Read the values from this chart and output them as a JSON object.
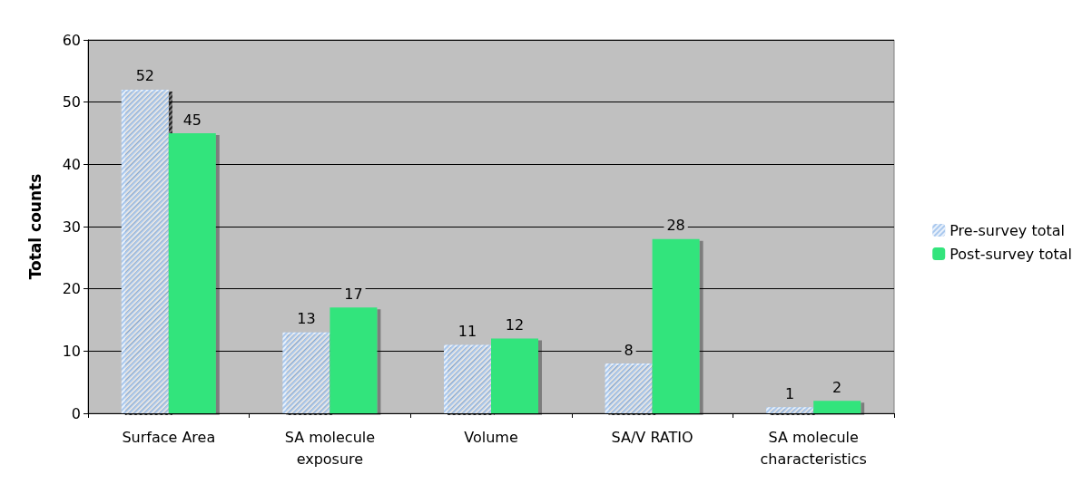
{
  "chart_data": {
    "type": "bar",
    "ylabel": "Total counts",
    "categories": [
      "Surface Area",
      "SA molecule\nexposure",
      "Volume",
      "SA/V RATIO",
      "SA molecule\ncharacteristics"
    ],
    "series": [
      {
        "name": "Pre-survey total",
        "color": "#a9c8ee",
        "values": [
          52,
          13,
          11,
          8,
          1
        ]
      },
      {
        "name": "Post-survey total",
        "color": "#33e47c",
        "values": [
          45,
          17,
          12,
          28,
          2
        ]
      }
    ],
    "ylim": [
      0,
      60
    ],
    "yticks": [
      0,
      10,
      20,
      30,
      40,
      50,
      60
    ],
    "grid": "y",
    "legend": "right",
    "data_labels": true
  }
}
